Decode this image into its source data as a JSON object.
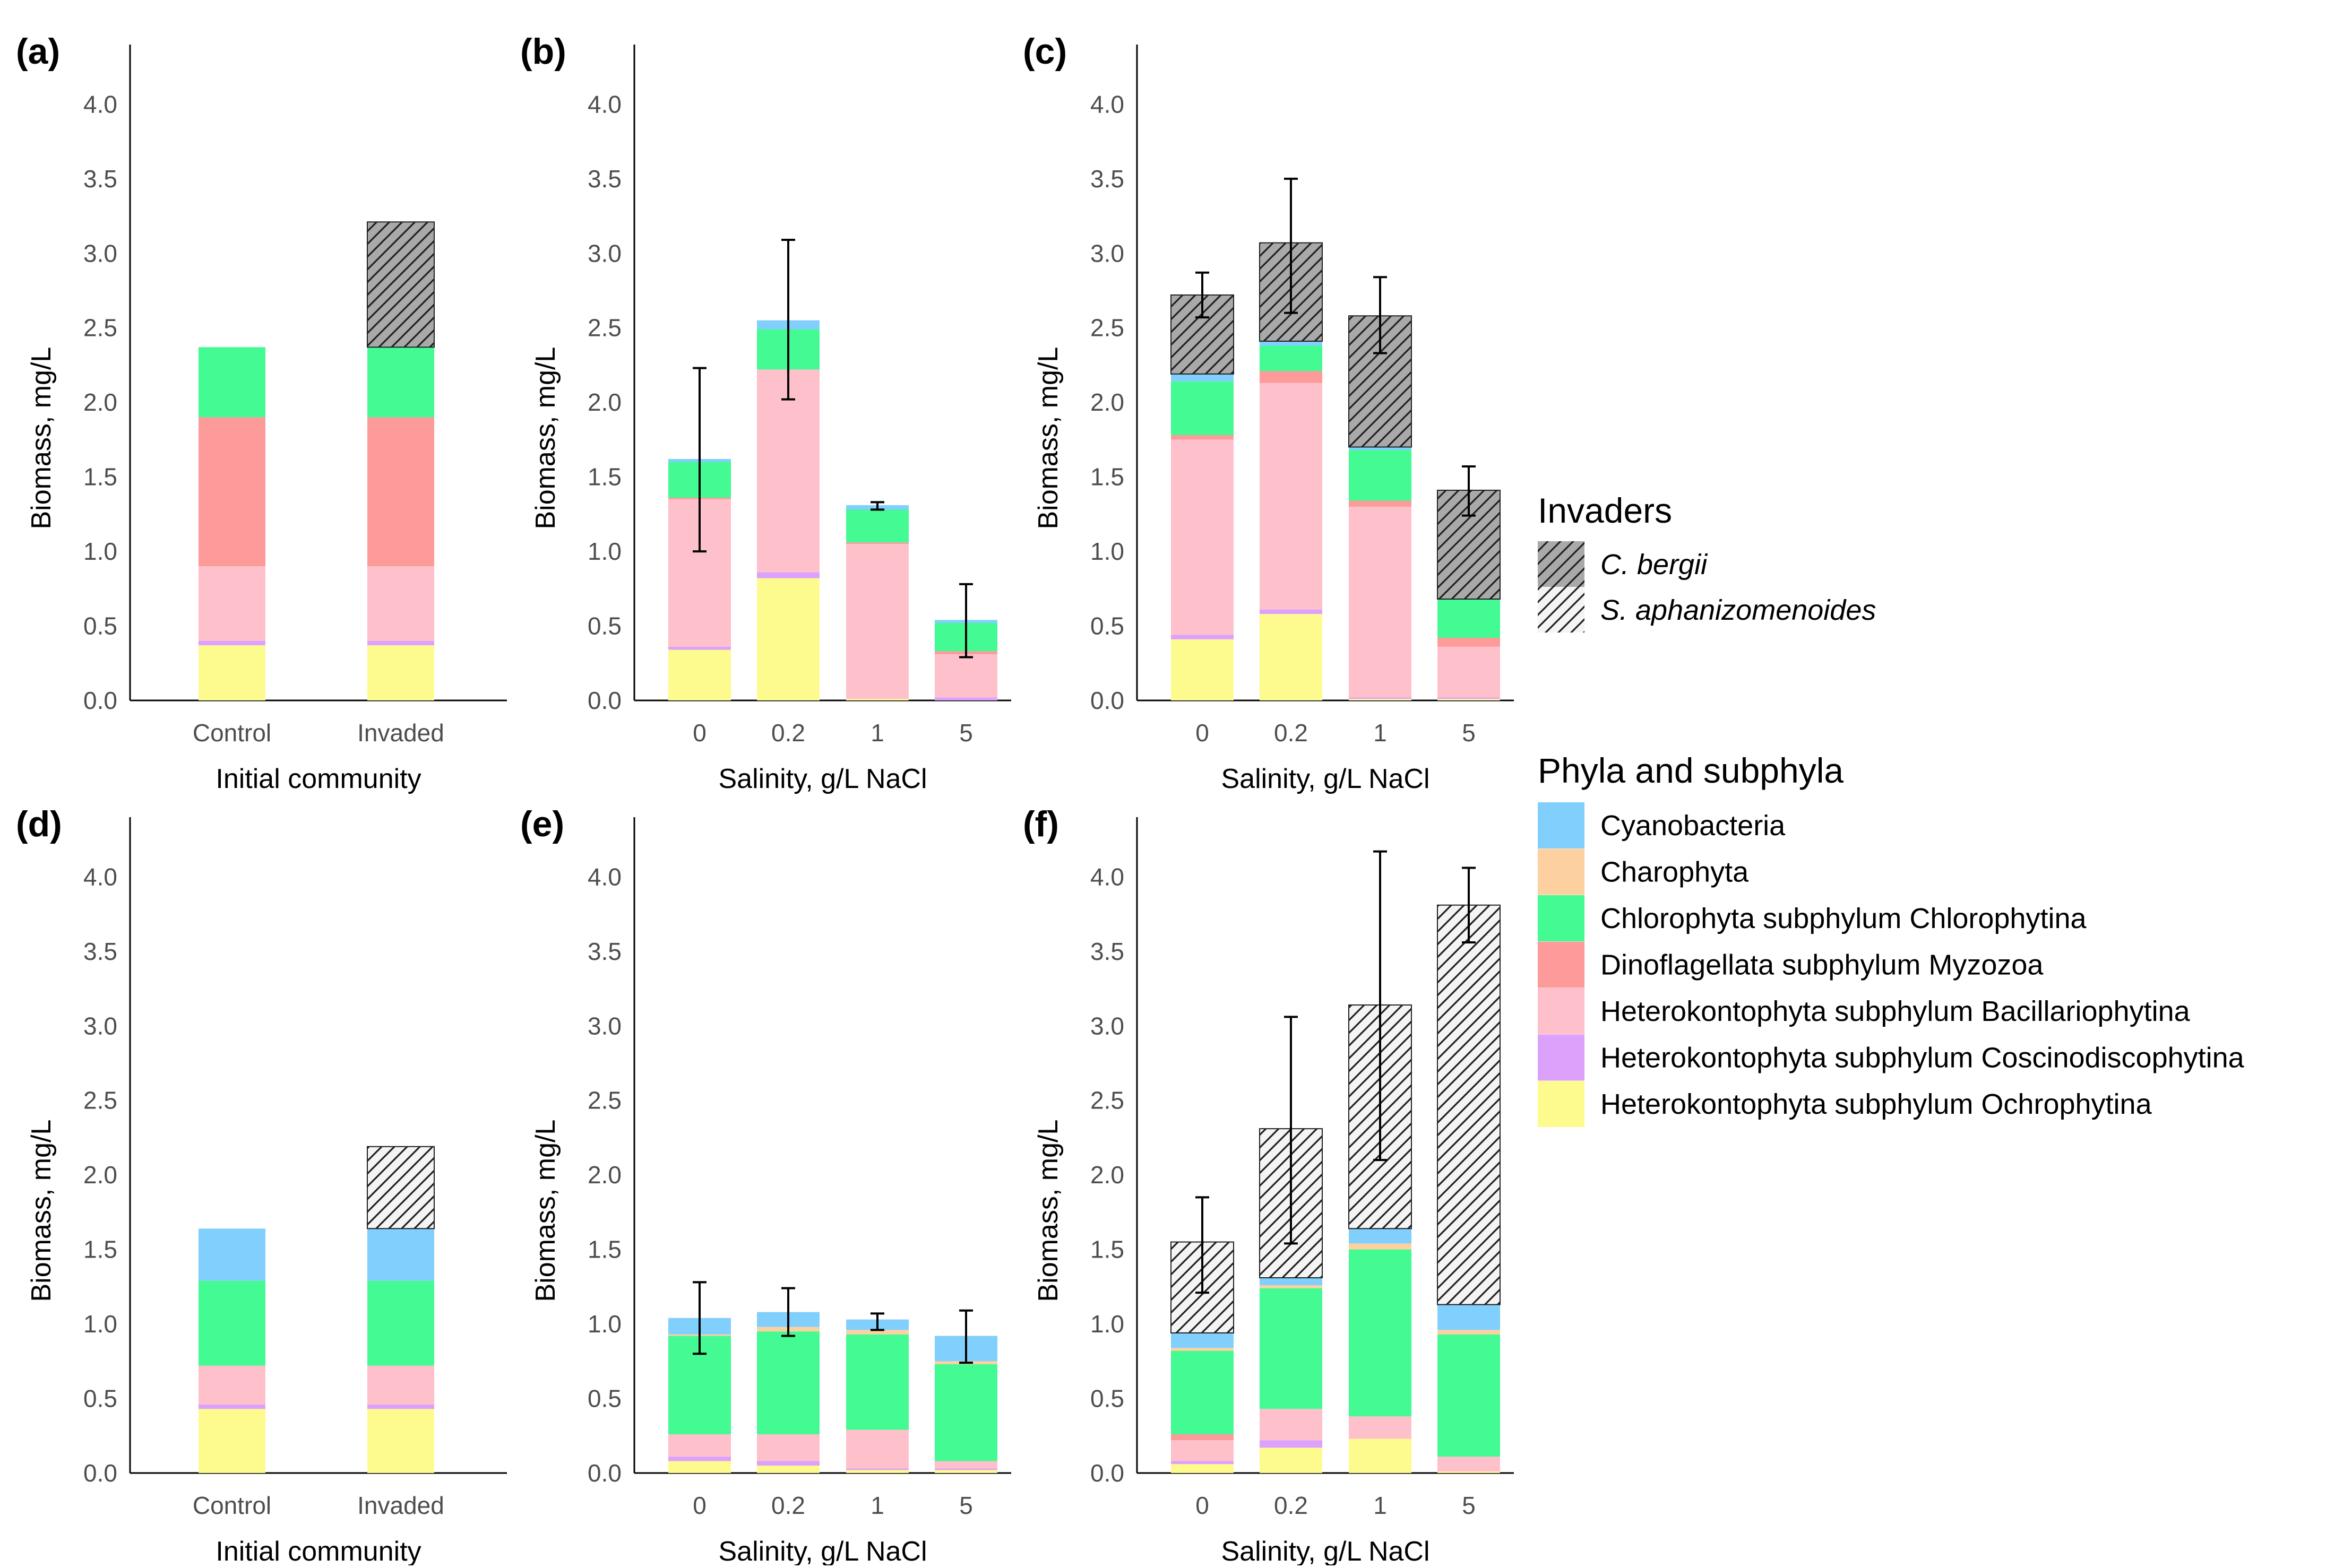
{
  "chart_data": {
    "type": "bar",
    "stacked": true,
    "y_axis_label": "Biomass, mg/L",
    "ylim": [
      0,
      4.4
    ],
    "yticks": [
      0.0,
      0.5,
      1.0,
      1.5,
      2.0,
      2.5,
      3.0,
      3.5,
      4.0
    ],
    "ytick_labels": [
      "0.0",
      "0.5",
      "1.0",
      "1.5",
      "2.0",
      "2.5",
      "3.0",
      "3.5",
      "4.0"
    ],
    "stack_order": [
      "Ochrophytina",
      "Coscinodiscophytina",
      "Bacillariophytina",
      "Myzozoa",
      "Chlorophytina",
      "Charophyta",
      "Cyanobacteria",
      "C. bergii",
      "S. aphanizomenoides"
    ],
    "colors": {
      "Cyanobacteria": "#80cffc",
      "Charophyta": "#fdd19f",
      "Chlorophytina": "#43fa93",
      "Myzozoa": "#fd9a9a",
      "Bacillariophytina": "#fec0cb",
      "Coscinodiscophytina": "#dca1fb",
      "Ochrophytina": "#fefb8e",
      "C. bergii": "#a9a9a9",
      "S. aphanizomenoides": "#f4f4f4",
      "hatch": "#202020"
    },
    "legend": {
      "invaders_title": "Invaders",
      "invaders": [
        {
          "key": "C. bergii",
          "label": "C. bergii"
        },
        {
          "key": "S. aphanizomenoides",
          "label": "S. aphanizomenoides"
        }
      ],
      "phyla_title": "Phyla and subphyla",
      "phyla": [
        {
          "key": "Cyanobacteria",
          "label": "Cyanobacteria"
        },
        {
          "key": "Charophyta",
          "label": "Charophyta"
        },
        {
          "key": "Chlorophytina",
          "label": "Chlorophyta subphylum Chlorophytina"
        },
        {
          "key": "Myzozoa",
          "label": "Dinoflagellata subphylum Myzozoa"
        },
        {
          "key": "Bacillariophytina",
          "label": "Heterokontophyta subphylum Bacillariophytina"
        },
        {
          "key": "Coscinodiscophytina",
          "label": "Heterokontophyta subphylum Coscinodiscophytina"
        },
        {
          "key": "Ochrophytina",
          "label": "Heterokontophyta subphylum Ochrophytina"
        }
      ]
    },
    "panels": [
      {
        "id": "a",
        "label": "(a)",
        "xlabel": "Initial community",
        "categories": [
          "Control",
          "Invaded"
        ],
        "bars": [
          {
            "Ochrophytina": 0.37,
            "Coscinodiscophytina": 0.03,
            "Bacillariophytina": 0.5,
            "Myzozoa": 1.0,
            "Chlorophytina": 0.47
          },
          {
            "Ochrophytina": 0.37,
            "Coscinodiscophytina": 0.03,
            "Bacillariophytina": 0.5,
            "Myzozoa": 1.0,
            "Chlorophytina": 0.47,
            "C. bergii": 0.84
          }
        ],
        "errors": [
          null,
          null
        ]
      },
      {
        "id": "b",
        "label": "(b)",
        "xlabel": "Salinity, g/L NaCl",
        "categories": [
          "0",
          "0.2",
          "1",
          "5"
        ],
        "bars": [
          {
            "Ochrophytina": 0.34,
            "Coscinodiscophytina": 0.02,
            "Bacillariophytina": 0.99,
            "Myzozoa": 0.01,
            "Chlorophytina": 0.24,
            "Cyanobacteria": 0.02
          },
          {
            "Ochrophytina": 0.82,
            "Coscinodiscophytina": 0.04,
            "Bacillariophytina": 1.36,
            "Chlorophytina": 0.27,
            "Cyanobacteria": 0.06
          },
          {
            "Ochrophytina": 0.01,
            "Bacillariophytina": 1.04,
            "Myzozoa": 0.01,
            "Chlorophytina": 0.22,
            "Cyanobacteria": 0.03
          },
          {
            "Coscinodiscophytina": 0.02,
            "Bacillariophytina": 0.29,
            "Myzozoa": 0.02,
            "Chlorophytina": 0.19,
            "Cyanobacteria": 0.02
          }
        ],
        "errors": [
          [
            1.0,
            2.23
          ],
          [
            2.02,
            3.09
          ],
          [
            1.28,
            1.33
          ],
          [
            0.29,
            0.78
          ]
        ]
      },
      {
        "id": "c",
        "label": "(c)",
        "xlabel": "Salinity, g/L NaCl",
        "categories": [
          "0",
          "0.2",
          "1",
          "5"
        ],
        "bars": [
          {
            "Ochrophytina": 0.41,
            "Coscinodiscophytina": 0.03,
            "Bacillariophytina": 1.31,
            "Myzozoa": 0.03,
            "Chlorophytina": 0.36,
            "Cyanobacteria": 0.05,
            "C. bergii": 0.53
          },
          {
            "Ochrophytina": 0.58,
            "Coscinodiscophytina": 0.03,
            "Bacillariophytina": 1.52,
            "Myzozoa": 0.08,
            "Chlorophytina": 0.17,
            "Cyanobacteria": 0.03,
            "C. bergii": 0.66
          },
          {
            "Ochrophytina": 0.01,
            "Coscinodiscophytina": 0.01,
            "Bacillariophytina": 1.28,
            "Myzozoa": 0.04,
            "Chlorophytina": 0.34,
            "Cyanobacteria": 0.02,
            "C. bergii": 0.88
          },
          {
            "Ochrophytina": 0.01,
            "Coscinodiscophytina": 0.01,
            "Bacillariophytina": 0.34,
            "Myzozoa": 0.06,
            "Chlorophytina": 0.26,
            "C. bergii": 0.73
          }
        ],
        "errors": [
          [
            2.57,
            2.87
          ],
          [
            2.6,
            3.5
          ],
          [
            2.33,
            2.84
          ],
          [
            1.24,
            1.57
          ]
        ]
      },
      {
        "id": "d",
        "label": "(d)",
        "xlabel": "Initial community",
        "categories": [
          "Control",
          "Invaded"
        ],
        "bars": [
          {
            "Ochrophytina": 0.43,
            "Coscinodiscophytina": 0.03,
            "Bacillariophytina": 0.26,
            "Chlorophytina": 0.57,
            "Cyanobacteria": 0.35
          },
          {
            "Ochrophytina": 0.43,
            "Coscinodiscophytina": 0.03,
            "Bacillariophytina": 0.26,
            "Chlorophytina": 0.57,
            "Cyanobacteria": 0.35,
            "S. aphanizomenoides": 0.55
          }
        ],
        "errors": [
          null,
          null
        ]
      },
      {
        "id": "e",
        "label": "(e)",
        "xlabel": "Salinity, g/L NaCl",
        "categories": [
          "0",
          "0.2",
          "1",
          "5"
        ],
        "bars": [
          {
            "Ochrophytina": 0.08,
            "Coscinodiscophytina": 0.03,
            "Bacillariophytina": 0.15,
            "Chlorophytina": 0.66,
            "Charophyta": 0.01,
            "Cyanobacteria": 0.11
          },
          {
            "Ochrophytina": 0.05,
            "Coscinodiscophytina": 0.03,
            "Bacillariophytina": 0.18,
            "Chlorophytina": 0.69,
            "Charophyta": 0.03,
            "Cyanobacteria": 0.1
          },
          {
            "Ochrophytina": 0.02,
            "Coscinodiscophytina": 0.01,
            "Bacillariophytina": 0.26,
            "Chlorophytina": 0.64,
            "Charophyta": 0.03,
            "Cyanobacteria": 0.07
          },
          {
            "Ochrophytina": 0.02,
            "Coscinodiscophytina": 0.01,
            "Bacillariophytina": 0.05,
            "Chlorophytina": 0.65,
            "Charophyta": 0.02,
            "Cyanobacteria": 0.17
          }
        ],
        "errors": [
          [
            0.8,
            1.28
          ],
          [
            0.92,
            1.24
          ],
          [
            0.96,
            1.07
          ],
          [
            0.74,
            1.09
          ]
        ]
      },
      {
        "id": "f",
        "label": "(f)",
        "xlabel": "Salinity, g/L NaCl",
        "categories": [
          "0",
          "0.2",
          "1",
          "5"
        ],
        "bars": [
          {
            "Ochrophytina": 0.06,
            "Coscinodiscophytina": 0.02,
            "Bacillariophytina": 0.14,
            "Myzozoa": 0.04,
            "Chlorophytina": 0.56,
            "Charophyta": 0.02,
            "Cyanobacteria": 0.1,
            "S. aphanizomenoides": 0.61
          },
          {
            "Ochrophytina": 0.17,
            "Coscinodiscophytina": 0.05,
            "Bacillariophytina": 0.21,
            "Chlorophytina": 0.81,
            "Charophyta": 0.02,
            "Cyanobacteria": 0.05,
            "S. aphanizomenoides": 1.0
          },
          {
            "Ochrophytina": 0.23,
            "Bacillariophytina": 0.15,
            "Chlorophytina": 1.12,
            "Charophyta": 0.04,
            "Cyanobacteria": 0.1,
            "S. aphanizomenoides": 1.5
          },
          {
            "Ochrophytina": 0.01,
            "Bacillariophytina": 0.1,
            "Chlorophytina": 0.82,
            "Charophyta": 0.03,
            "Cyanobacteria": 0.17,
            "S. aphanizomenoides": 2.68
          }
        ],
        "errors": [
          [
            1.21,
            1.85
          ],
          [
            1.54,
            3.06
          ],
          [
            2.1,
            4.17
          ],
          [
            3.56,
            4.06
          ]
        ]
      }
    ]
  }
}
